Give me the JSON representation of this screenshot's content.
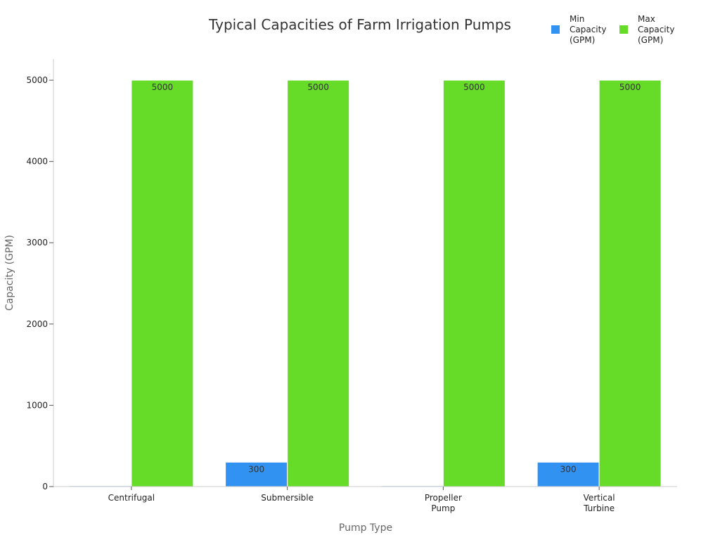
{
  "chart_data": {
    "type": "bar",
    "title": "Typical Capacities of Farm Irrigation Pumps",
    "xlabel": "Pump Type",
    "ylabel": "Capacity (GPM)",
    "categories": [
      [
        "Centrifugal"
      ],
      [
        "Submersible"
      ],
      [
        "Propeller",
        "Pump"
      ],
      [
        "Vertical",
        "Turbine"
      ]
    ],
    "series": [
      {
        "name": [
          "Min",
          "Capacity",
          "(GPM)"
        ],
        "color": "#3192f2",
        "values": [
          10,
          300,
          10,
          300
        ],
        "labels": [
          "",
          "300",
          "",
          "300"
        ]
      },
      {
        "name": [
          "Max",
          "Capacity",
          "(GPM)"
        ],
        "color": "#66db28",
        "values": [
          5000,
          5000,
          5000,
          5000
        ],
        "labels": [
          "5000",
          "5000",
          "5000",
          "5000"
        ]
      }
    ],
    "ylim": [
      0,
      5260
    ],
    "yticks": [
      0,
      1000,
      2000,
      3000,
      4000,
      5000
    ],
    "grid": false,
    "legend_position": "top-right"
  }
}
